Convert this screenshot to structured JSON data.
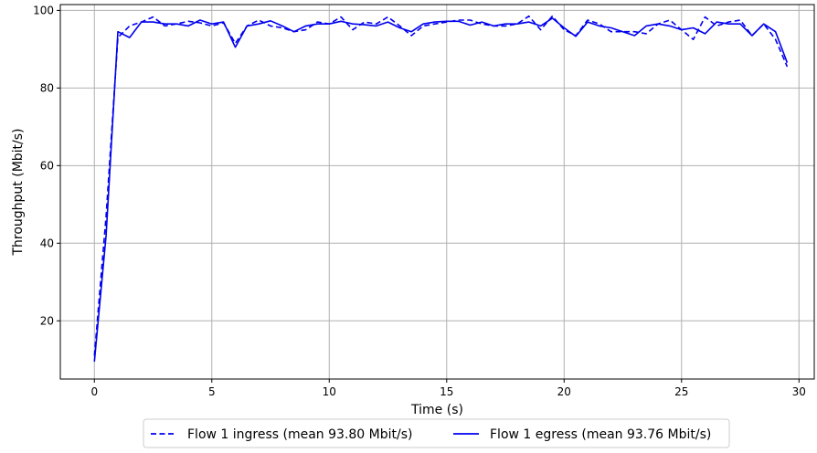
{
  "chart_data": {
    "type": "line",
    "xlabel": "Time (s)",
    "ylabel": "Throughput (Mbit/s)",
    "xlim": [
      -1.45,
      30.65
    ],
    "ylim": [
      5,
      101.5
    ],
    "xticks": [
      0,
      5,
      10,
      15,
      20,
      25,
      30
    ],
    "yticks": [
      20,
      40,
      60,
      80,
      100
    ],
    "grid": true,
    "legend_position": "bottom-center",
    "x": [
      0,
      0.5,
      1,
      1.5,
      2,
      2.5,
      3,
      3.5,
      4,
      4.5,
      5,
      5.5,
      6,
      6.5,
      7,
      7.5,
      8,
      8.5,
      9,
      9.5,
      10,
      10.5,
      11,
      11.5,
      12,
      12.5,
      13,
      13.5,
      14,
      14.5,
      15,
      15.5,
      16,
      16.5,
      17,
      17.5,
      18,
      18.5,
      19,
      19.5,
      20,
      20.5,
      21,
      21.5,
      22,
      22.5,
      23,
      23.5,
      24,
      24.5,
      25,
      25.5,
      26,
      26.5,
      27,
      27.5,
      28,
      28.5,
      29,
      29.5
    ],
    "series": [
      {
        "name": "Flow 1 ingress (mean 93.80 Mbit/s)",
        "style": "dashed",
        "color": "#0000ee",
        "values": [
          11.0,
          47.0,
          93.0,
          96.0,
          97.0,
          98.3,
          96.0,
          96.5,
          97.2,
          96.8,
          96.0,
          96.8,
          91.5,
          96.0,
          97.5,
          96.0,
          95.5,
          94.5,
          95.0,
          97.0,
          96.5,
          98.3,
          95.0,
          97.0,
          96.5,
          98.3,
          96.0,
          93.5,
          96.0,
          96.5,
          97.0,
          97.5,
          97.5,
          96.5,
          96.0,
          96.0,
          96.5,
          98.5,
          95.0,
          98.5,
          95.0,
          93.5,
          97.5,
          96.5,
          94.5,
          94.5,
          94.5,
          94.0,
          96.5,
          97.5,
          95.0,
          92.5,
          98.3,
          96.0,
          97.0,
          97.5,
          93.5,
          96.5,
          92.5,
          85.5
        ]
      },
      {
        "name": "Flow 1 egress (mean 93.76 Mbit/s)",
        "style": "solid",
        "color": "#0000ee",
        "values": [
          9.5,
          42.0,
          94.5,
          93.0,
          97.0,
          97.0,
          96.5,
          96.5,
          96.0,
          97.5,
          96.5,
          97.0,
          90.5,
          96.0,
          96.5,
          97.3,
          96.0,
          94.5,
          96.0,
          96.5,
          96.5,
          97.2,
          96.5,
          96.3,
          96.0,
          97.0,
          95.5,
          94.5,
          96.5,
          97.0,
          97.2,
          97.2,
          96.2,
          97.0,
          96.0,
          96.5,
          96.5,
          97.0,
          96.0,
          98.0,
          95.5,
          93.3,
          97.0,
          96.0,
          95.5,
          94.5,
          93.5,
          96.0,
          96.5,
          96.0,
          95.0,
          95.5,
          94.0,
          97.0,
          96.5,
          96.5,
          93.5,
          96.5,
          94.5,
          86.5
        ]
      }
    ]
  }
}
